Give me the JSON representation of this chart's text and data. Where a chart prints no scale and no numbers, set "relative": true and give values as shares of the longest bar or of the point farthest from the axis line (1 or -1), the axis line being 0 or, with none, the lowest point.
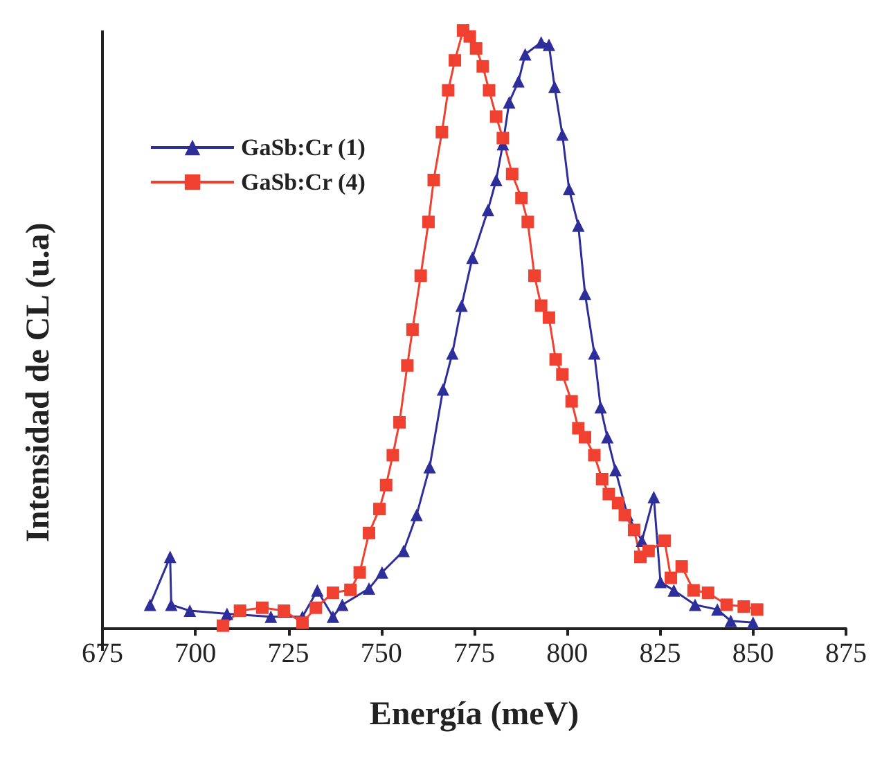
{
  "chart_data": {
    "type": "line",
    "relative": true,
    "xlabel": "Energía (meV)",
    "ylabel": "Intensidad de CL (u.a)",
    "xlim": [
      675,
      875
    ],
    "xticks": [
      675,
      700,
      725,
      750,
      775,
      800,
      825,
      850,
      875
    ],
    "legend": "top left",
    "grid": false,
    "series": [
      {
        "name": "GaSb:Cr (1)",
        "color": "#2e2e9a",
        "marker": "triangle",
        "x": [
          687.8,
          693.2,
          693.5,
          698.5,
          708.5,
          720.3,
          728.8,
          732.8,
          737,
          739.5,
          746.7,
          750.2,
          756,
          759.5,
          763,
          766.6,
          769.1,
          771.6,
          774.5,
          778.7,
          780.9,
          782.7,
          784.4,
          786.9,
          788.7,
          793,
          795.1,
          796.6,
          798.7,
          800.5,
          803,
          804.8,
          807.3,
          809,
          810.8,
          813,
          816.2,
          820.1,
          823.3,
          825.1,
          828.7,
          834.4,
          840.4,
          844,
          850
        ],
        "values": [
          0.04,
          0.12,
          0.04,
          0.03,
          0.025,
          0.02,
          0.02,
          0.064,
          0.02,
          0.04,
          0.067,
          0.094,
          0.13,
          0.19,
          0.27,
          0.4,
          0.46,
          0.54,
          0.62,
          0.7,
          0.75,
          0.81,
          0.88,
          0.915,
          0.96,
          0.98,
          0.976,
          0.906,
          0.826,
          0.735,
          0.674,
          0.56,
          0.46,
          0.37,
          0.32,
          0.265,
          0.19,
          0.147,
          0.22,
          0.078,
          0.064,
          0.04,
          0.032,
          0.013,
          0.01
        ]
      },
      {
        "name": "GaSb:Cr (4)",
        "color": "#f04030",
        "marker": "square",
        "x": [
          707.4,
          712,
          718,
          723.8,
          728.8,
          732.4,
          737,
          741.7,
          744.2,
          746.7,
          749.5,
          751.3,
          753.1,
          754.9,
          757,
          758.4,
          760.6,
          762.7,
          764.1,
          766.3,
          768,
          769.8,
          772,
          773.8,
          775.5,
          777.3,
          779,
          780.9,
          782.7,
          785.2,
          787.7,
          789.4,
          791.2,
          793,
          795.1,
          796.9,
          798.7,
          801.2,
          803,
          804.8,
          807.3,
          809.4,
          811.2,
          813.7,
          815.5,
          818,
          819.7,
          821.9,
          826.2,
          827.9,
          830.8,
          834,
          837.9,
          842.9,
          847.5,
          851.1
        ],
        "values": [
          0.005,
          0.03,
          0.035,
          0.03,
          0.01,
          0.035,
          0.06,
          0.065,
          0.094,
          0.16,
          0.2,
          0.24,
          0.29,
          0.345,
          0.44,
          0.5,
          0.59,
          0.68,
          0.75,
          0.83,
          0.9,
          0.95,
          1,
          0.99,
          0.97,
          0.94,
          0.9,
          0.856,
          0.82,
          0.76,
          0.72,
          0.68,
          0.59,
          0.54,
          0.52,
          0.45,
          0.425,
          0.38,
          0.335,
          0.32,
          0.29,
          0.25,
          0.225,
          0.21,
          0.19,
          0.165,
          0.12,
          0.13,
          0.147,
          0.085,
          0.104,
          0.064,
          0.06,
          0.04,
          0.037,
          0.032
        ]
      }
    ]
  }
}
